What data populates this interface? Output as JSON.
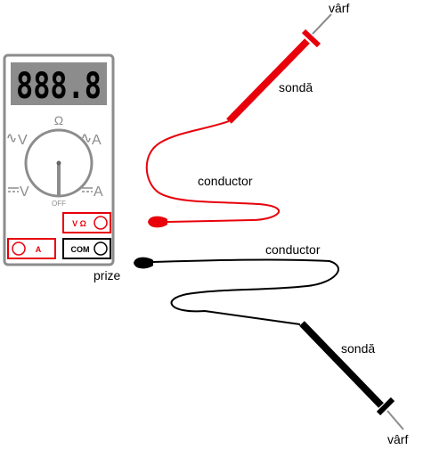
{
  "meter": {
    "display": "888.8",
    "dial": {
      "ohm": "Ω",
      "ac_v": "V",
      "ac_a": "A",
      "dc_v": "V",
      "dc_a": "A",
      "off": "OFF"
    },
    "jacks": {
      "vohm": "V Ω",
      "amp": "A",
      "com": "COM"
    }
  },
  "labels": {
    "tip_red": "vârf",
    "probe_red": "sondă",
    "lead_red": "conductor",
    "lead_black": "conductor",
    "plug": "prize",
    "probe_black": "sondă",
    "tip_black": "vârf"
  },
  "colors": {
    "red": "#e8000b",
    "black": "#000000",
    "meter_body": "#8c8c8c",
    "display_bg": "#8c8c8c"
  }
}
